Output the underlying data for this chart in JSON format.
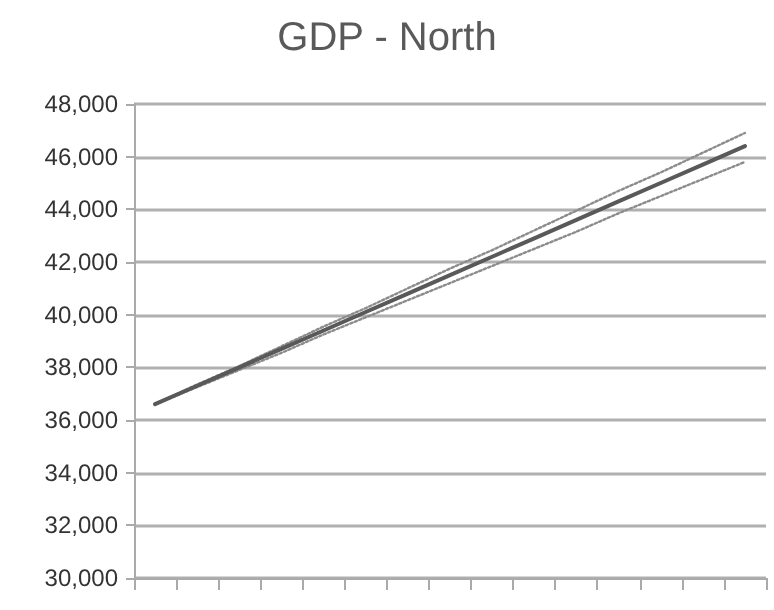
{
  "chart_data": {
    "type": "line",
    "title": "GDP - North",
    "categories": [
      null,
      null,
      null,
      null,
      null,
      null,
      null,
      null,
      null,
      null,
      null,
      null,
      null,
      null,
      null
    ],
    "series": [
      {
        "color": "#595959",
        "values": [
          36600,
          37300,
          38000,
          38700,
          39400,
          40100,
          40800,
          41500,
          42200,
          42900,
          43600,
          44300,
          45000,
          45700,
          46400
        ]
      },
      {
        "color": "#8c8c8c",
        "line_style": "dotted",
        "values": [
          36600,
          37350,
          38050,
          38800,
          39550,
          40250,
          41000,
          41750,
          42450,
          43200,
          43950,
          44700,
          45400,
          46150,
          46900
        ]
      },
      {
        "color": "#8c8c8c",
        "line_style": "dotted",
        "values": [
          36600,
          37250,
          37900,
          38550,
          39250,
          39900,
          40550,
          41200,
          41850,
          42500,
          43150,
          43850,
          44500,
          45150,
          45800
        ]
      }
    ],
    "ylim": [
      30000,
      48000
    ],
    "yticks": [
      {
        "value": 30000,
        "label": "30,000"
      },
      {
        "value": 32000,
        "label": "32,000"
      },
      {
        "value": 34000,
        "label": "34,000"
      },
      {
        "value": 36000,
        "label": "36,000"
      },
      {
        "value": 38000,
        "label": "38,000"
      },
      {
        "value": 40000,
        "label": "40,000"
      },
      {
        "value": 42000,
        "label": "42,000"
      },
      {
        "value": 44000,
        "label": "44,000"
      },
      {
        "value": 46000,
        "label": "46,000"
      },
      {
        "value": 48000,
        "label": "48,000"
      }
    ],
    "grid": "y",
    "marker": "none",
    "line_style": "solid",
    "tick_labels": "y"
  }
}
